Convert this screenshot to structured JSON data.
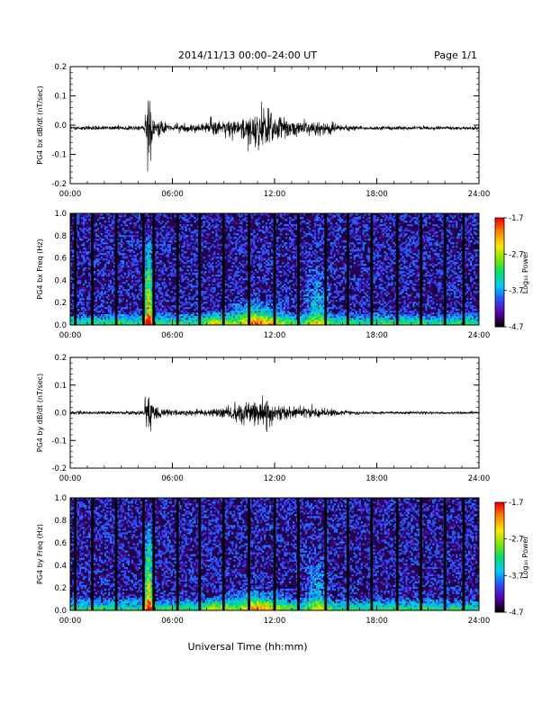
{
  "header": {
    "title": "2014/11/13  00:00–24:00 UT",
    "page": "Page 1/1"
  },
  "footer": {
    "xlabel": "Universal Time (hh:mm)"
  },
  "colors": {
    "trace": "#000000",
    "spectrogram_background": "#22004a",
    "colormap": [
      "#000000",
      "#5b00a8",
      "#2a4cff",
      "#00c8ff",
      "#00e070",
      "#7ce600",
      "#ffe600",
      "#ff8a00",
      "#ff0000"
    ]
  },
  "chart_data": [
    {
      "type": "line",
      "ylabel": "PG4 bx dB/dt (nT/sec)",
      "xlim": [
        0,
        24
      ],
      "ylim": [
        -0.2,
        0.2
      ],
      "xticks": [
        "00:00",
        "06:00",
        "12:00",
        "18:00",
        "24:00"
      ],
      "yticks": [
        "-0.2",
        "-0.1",
        "0.0",
        "0.1",
        "0.2"
      ],
      "baseline": -0.01,
      "envelope": [
        {
          "t": 0.0,
          "amp": 0.012
        },
        {
          "t": 4.3,
          "amp": 0.014
        },
        {
          "t": 4.5,
          "amp": 0.17
        },
        {
          "t": 4.7,
          "amp": 0.19
        },
        {
          "t": 5.0,
          "amp": 0.06
        },
        {
          "t": 5.5,
          "amp": 0.03
        },
        {
          "t": 7.0,
          "amp": 0.02
        },
        {
          "t": 8.0,
          "amp": 0.04
        },
        {
          "t": 8.5,
          "amp": 0.06
        },
        {
          "t": 9.0,
          "amp": 0.03
        },
        {
          "t": 9.5,
          "amp": 0.05
        },
        {
          "t": 10.0,
          "amp": 0.08
        },
        {
          "t": 10.5,
          "amp": 0.11
        },
        {
          "t": 11.0,
          "amp": 0.1
        },
        {
          "t": 11.5,
          "amp": 0.14
        },
        {
          "t": 12.0,
          "amp": 0.08
        },
        {
          "t": 13.0,
          "amp": 0.05
        },
        {
          "t": 14.0,
          "amp": 0.04
        },
        {
          "t": 15.0,
          "amp": 0.04
        },
        {
          "t": 16.0,
          "amp": 0.02
        },
        {
          "t": 17.0,
          "amp": 0.012
        },
        {
          "t": 24.0,
          "amp": 0.01
        }
      ]
    },
    {
      "type": "heatmap",
      "ylabel": "PG4 bx Freq (Hz)",
      "xlim": [
        0,
        24
      ],
      "ylim": [
        0.0,
        1.0
      ],
      "xticks": [
        "00:00",
        "06:00",
        "12:00",
        "18:00",
        "24:00"
      ],
      "yticks": [
        "0.0",
        "0.2",
        "0.4",
        "0.6",
        "0.8",
        "1.0"
      ],
      "colorbar": {
        "label": "Log₁₀ Power",
        "ticks": [
          "-1.7",
          "-2.7",
          "-3.7",
          "-4.7"
        ],
        "range": [
          -4.7,
          -1.7
        ]
      },
      "data_gaps_hours": [
        0.3,
        1.3,
        2.7,
        4.3,
        4.9,
        6.3,
        7.6,
        9.0,
        10.5,
        12.0,
        13.4,
        15.0,
        16.3,
        17.7,
        19.2,
        20.6,
        22.0,
        23.1
      ],
      "events": [
        {
          "t": 4.6,
          "width": 0.35,
          "fmax": 0.85,
          "strength": 1.0
        },
        {
          "t": 8.5,
          "width": 1.0,
          "fmax": 0.15,
          "strength": 0.35
        },
        {
          "t": 11.0,
          "width": 2.2,
          "fmax": 0.25,
          "strength": 0.55
        },
        {
          "t": 14.5,
          "width": 1.0,
          "fmax": 0.6,
          "strength": 0.35
        }
      ]
    },
    {
      "type": "line",
      "ylabel": "PG4 by dB/dt (nT/sec)",
      "xlim": [
        0,
        24
      ],
      "ylim": [
        -0.2,
        0.2
      ],
      "xticks": [
        "00:00",
        "06:00",
        "12:00",
        "18:00",
        "24:00"
      ],
      "yticks": [
        "-0.2",
        "-0.1",
        "0.0",
        "0.1",
        "0.2"
      ],
      "baseline": 0.0,
      "envelope": [
        {
          "t": 0.0,
          "amp": 0.01
        },
        {
          "t": 4.3,
          "amp": 0.012
        },
        {
          "t": 4.5,
          "amp": 0.19
        },
        {
          "t": 4.7,
          "amp": 0.11
        },
        {
          "t": 5.0,
          "amp": 0.04
        },
        {
          "t": 6.0,
          "amp": 0.02
        },
        {
          "t": 8.0,
          "amp": 0.02
        },
        {
          "t": 9.0,
          "amp": 0.03
        },
        {
          "t": 10.0,
          "amp": 0.06
        },
        {
          "t": 11.0,
          "amp": 0.08
        },
        {
          "t": 11.5,
          "amp": 0.13
        },
        {
          "t": 12.0,
          "amp": 0.05
        },
        {
          "t": 13.0,
          "amp": 0.04
        },
        {
          "t": 14.0,
          "amp": 0.035
        },
        {
          "t": 15.0,
          "amp": 0.03
        },
        {
          "t": 16.0,
          "amp": 0.015
        },
        {
          "t": 17.0,
          "amp": 0.01
        },
        {
          "t": 24.0,
          "amp": 0.008
        }
      ]
    },
    {
      "type": "heatmap",
      "ylabel": "PG4 by Freq (Hz)",
      "xlim": [
        0,
        24
      ],
      "ylim": [
        0.0,
        1.0
      ],
      "xticks": [
        "00:00",
        "06:00",
        "12:00",
        "18:00",
        "24:00"
      ],
      "yticks": [
        "0.0",
        "0.2",
        "0.4",
        "0.6",
        "0.8",
        "1.0"
      ],
      "colorbar": {
        "label": "Log₁₀ Power",
        "ticks": [
          "-1.7",
          "-2.7",
          "-3.7",
          "-4.7"
        ],
        "range": [
          -4.7,
          -1.7
        ]
      },
      "data_gaps_hours": [
        0.3,
        1.3,
        2.7,
        4.3,
        4.9,
        6.3,
        7.6,
        9.0,
        10.5,
        12.0,
        13.4,
        15.0,
        16.3,
        17.7,
        19.2,
        20.6,
        22.0,
        23.1
      ],
      "events": [
        {
          "t": 4.6,
          "width": 0.35,
          "fmax": 0.85,
          "strength": 0.9
        },
        {
          "t": 8.5,
          "width": 1.0,
          "fmax": 0.15,
          "strength": 0.35
        },
        {
          "t": 11.0,
          "width": 2.2,
          "fmax": 0.22,
          "strength": 0.5
        },
        {
          "t": 14.5,
          "width": 1.0,
          "fmax": 0.6,
          "strength": 0.3
        }
      ]
    }
  ]
}
